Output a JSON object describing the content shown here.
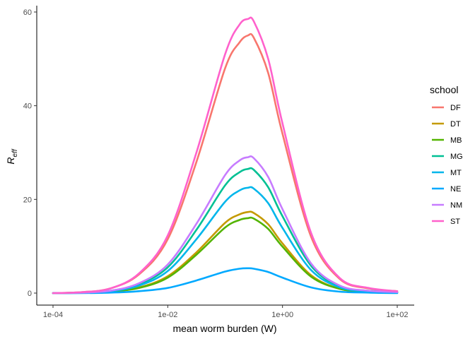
{
  "chart_data": {
    "type": "line",
    "xlabel": "mean worm burden (W)",
    "ylabel_main": "R",
    "ylabel_sub": "eff",
    "x_scale": "log10",
    "xlim": [
      0.0001,
      100
    ],
    "ylim": [
      0,
      60
    ],
    "x_ticks": [
      {
        "value": 0.0001,
        "label": "1e-04"
      },
      {
        "value": 0.01,
        "label": "1e-02"
      },
      {
        "value": 1,
        "label": "1e+00"
      },
      {
        "value": 100,
        "label": "1e+02"
      }
    ],
    "y_ticks": [
      {
        "value": 0,
        "label": "0"
      },
      {
        "value": 20,
        "label": "20"
      },
      {
        "value": 40,
        "label": "40"
      },
      {
        "value": 60,
        "label": "60"
      }
    ],
    "grid": false,
    "legend": {
      "title": "school",
      "placement": "right"
    },
    "x": [
      0.0001,
      0.000316,
      0.001,
      0.00316,
      0.01,
      0.0316,
      0.1,
      0.178,
      0.25,
      0.316,
      0.562,
      1,
      3.16,
      10,
      31.6,
      100
    ],
    "series": [
      {
        "name": "DF",
        "color": "#F8766D",
        "values": [
          0.0,
          0.2,
          1.0,
          4.0,
          11.5,
          28.0,
          48.0,
          53.5,
          55.0,
          54.5,
          47.0,
          34.0,
          12.0,
          3.0,
          1.0,
          0.4
        ]
      },
      {
        "name": "DT",
        "color": "#C49A00",
        "values": [
          0.0,
          0.1,
          0.3,
          1.2,
          3.6,
          8.7,
          15.0,
          16.8,
          17.3,
          17.1,
          14.7,
          10.6,
          3.8,
          0.9,
          0.3,
          0.1
        ]
      },
      {
        "name": "MB",
        "color": "#53B400",
        "values": [
          0.0,
          0.1,
          0.3,
          1.1,
          3.3,
          8.2,
          14.0,
          15.6,
          16.0,
          15.9,
          13.7,
          9.9,
          3.5,
          0.9,
          0.3,
          0.1
        ]
      },
      {
        "name": "MG",
        "color": "#00C094",
        "values": [
          0.0,
          0.1,
          0.5,
          1.9,
          5.5,
          13.5,
          23.0,
          25.8,
          26.5,
          26.3,
          22.6,
          16.4,
          5.8,
          1.4,
          0.5,
          0.2
        ]
      },
      {
        "name": "MT",
        "color": "#00B6EB",
        "values": [
          0.0,
          0.1,
          0.4,
          1.6,
          4.7,
          11.5,
          19.5,
          21.9,
          22.5,
          22.3,
          19.2,
          13.9,
          4.9,
          1.2,
          0.4,
          0.1
        ]
      },
      {
        "name": "NE",
        "color": "#00A9FF",
        "values": [
          0.0,
          0.0,
          0.1,
          0.4,
          1.1,
          2.7,
          4.6,
          5.2,
          5.3,
          5.2,
          4.5,
          3.3,
          1.2,
          0.3,
          0.1,
          0.0
        ]
      },
      {
        "name": "NM",
        "color": "#C77CFF",
        "values": [
          0.0,
          0.1,
          0.5,
          2.1,
          6.1,
          14.8,
          25.2,
          28.3,
          29.0,
          28.8,
          24.8,
          17.9,
          6.3,
          1.6,
          0.5,
          0.2
        ]
      },
      {
        "name": "ST",
        "color": "#FF61CC",
        "values": [
          0.0,
          0.2,
          1.0,
          4.2,
          12.3,
          30.0,
          51.0,
          57.3,
          58.5,
          58.0,
          50.0,
          36.2,
          12.8,
          3.2,
          1.1,
          0.4
        ]
      }
    ]
  }
}
